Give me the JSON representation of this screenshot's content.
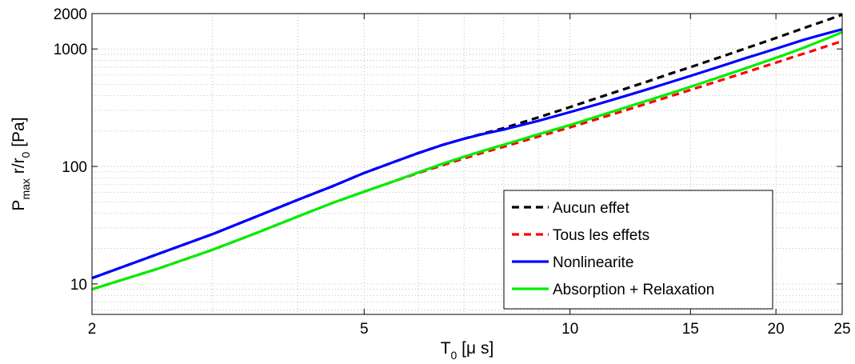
{
  "chart_data": {
    "type": "line",
    "title": "",
    "xscale": "log",
    "yscale": "log",
    "xlim": [
      2,
      25
    ],
    "ylim": [
      5.5,
      2000
    ],
    "grid": true,
    "legend_position": "bottom-right",
    "xlabel": {
      "base": "T",
      "sub": "0",
      "suffix": " [μ s]"
    },
    "ylabel": {
      "base": "P",
      "sub1": "max",
      "mid": " r/r",
      "sub2": "0",
      "suffix": " [Pa]"
    },
    "xticks": [
      {
        "value": 2,
        "label": "2"
      },
      {
        "value": 5,
        "label": "5"
      },
      {
        "value": 10,
        "label": "10"
      },
      {
        "value": 15,
        "label": "15"
      },
      {
        "value": 20,
        "label": "20"
      },
      {
        "value": 25,
        "label": "25"
      }
    ],
    "yticks": [
      {
        "value": 10,
        "label": "10"
      },
      {
        "value": 100,
        "label": "100"
      },
      {
        "value": 1000,
        "label": "1000"
      },
      {
        "value": 2000,
        "label": "2000"
      }
    ],
    "series": [
      {
        "name": "Aucun effet",
        "color": "#000000",
        "dash": "dashed",
        "points": [
          [
            2,
            11.2
          ],
          [
            2.5,
            18
          ],
          [
            3,
            26.5
          ],
          [
            3.5,
            38
          ],
          [
            4,
            52
          ],
          [
            4.5,
            68
          ],
          [
            5,
            88
          ],
          [
            5.5,
            108
          ],
          [
            6,
            130
          ],
          [
            6.5,
            152
          ],
          [
            7,
            172
          ],
          [
            7.5,
            192
          ],
          [
            8,
            212
          ],
          [
            9,
            262
          ],
          [
            10,
            320
          ],
          [
            11,
            385
          ],
          [
            12,
            455
          ],
          [
            13,
            530
          ],
          [
            14,
            615
          ],
          [
            15,
            700
          ],
          [
            16,
            795
          ],
          [
            17,
            895
          ],
          [
            18,
            1005
          ],
          [
            19,
            1120
          ],
          [
            20,
            1240
          ],
          [
            21,
            1370
          ],
          [
            22,
            1510
          ],
          [
            23,
            1650
          ],
          [
            24,
            1800
          ],
          [
            25,
            1960
          ]
        ]
      },
      {
        "name": "Tous les effets",
        "color": "#ff0000",
        "dash": "dashed",
        "points": [
          [
            2,
            9
          ],
          [
            2.5,
            13.5
          ],
          [
            3,
            19.5
          ],
          [
            3.5,
            27.5
          ],
          [
            4,
            37.5
          ],
          [
            4.5,
            49
          ],
          [
            5,
            61
          ],
          [
            5.5,
            74
          ],
          [
            6,
            88
          ],
          [
            6.5,
            102
          ],
          [
            7,
            117
          ],
          [
            7.5,
            132
          ],
          [
            8,
            147
          ],
          [
            9,
            180
          ],
          [
            10,
            215
          ],
          [
            11,
            255
          ],
          [
            12,
            298
          ],
          [
            13,
            345
          ],
          [
            14,
            395
          ],
          [
            15,
            448
          ],
          [
            16,
            505
          ],
          [
            17,
            565
          ],
          [
            18,
            628
          ],
          [
            19,
            695
          ],
          [
            20,
            765
          ],
          [
            21,
            840
          ],
          [
            22,
            915
          ],
          [
            23,
            995
          ],
          [
            24,
            1080
          ],
          [
            25,
            1165
          ]
        ]
      },
      {
        "name": "Nonlinearite",
        "color": "#0000ff",
        "dash": "solid",
        "points": [
          [
            2,
            11.2
          ],
          [
            2.5,
            18
          ],
          [
            3,
            26.5
          ],
          [
            3.5,
            38
          ],
          [
            4,
            52
          ],
          [
            4.5,
            68
          ],
          [
            5,
            88
          ],
          [
            5.5,
            108
          ],
          [
            6,
            130
          ],
          [
            6.5,
            152
          ],
          [
            7,
            172
          ],
          [
            7.5,
            190
          ],
          [
            8,
            206
          ],
          [
            9,
            245
          ],
          [
            10,
            290
          ],
          [
            11,
            340
          ],
          [
            12,
            395
          ],
          [
            13,
            455
          ],
          [
            14,
            520
          ],
          [
            15,
            590
          ],
          [
            16,
            665
          ],
          [
            17,
            745
          ],
          [
            18,
            830
          ],
          [
            19,
            915
          ],
          [
            20,
            1005
          ],
          [
            21,
            1100
          ],
          [
            22,
            1200
          ],
          [
            23,
            1290
          ],
          [
            24,
            1380
          ],
          [
            25,
            1470
          ]
        ]
      },
      {
        "name": "Absorption + Relaxation",
        "color": "#00ee00",
        "dash": "solid",
        "points": [
          [
            2,
            9
          ],
          [
            2.5,
            13.5
          ],
          [
            3,
            19.5
          ],
          [
            3.5,
            27.5
          ],
          [
            4,
            37.5
          ],
          [
            4.5,
            49
          ],
          [
            5,
            61
          ],
          [
            5.5,
            74
          ],
          [
            6,
            89
          ],
          [
            6.5,
            105
          ],
          [
            7,
            121
          ],
          [
            7.5,
            137
          ],
          [
            8,
            153
          ],
          [
            9,
            188
          ],
          [
            10,
            225
          ],
          [
            11,
            268
          ],
          [
            12,
            315
          ],
          [
            13,
            365
          ],
          [
            14,
            418
          ],
          [
            15,
            476
          ],
          [
            16,
            540
          ],
          [
            17,
            608
          ],
          [
            18,
            680
          ],
          [
            19,
            758
          ],
          [
            20,
            840
          ],
          [
            21,
            930
          ],
          [
            22,
            1030
          ],
          [
            23,
            1140
          ],
          [
            24,
            1260
          ],
          [
            25,
            1390
          ]
        ]
      }
    ]
  }
}
